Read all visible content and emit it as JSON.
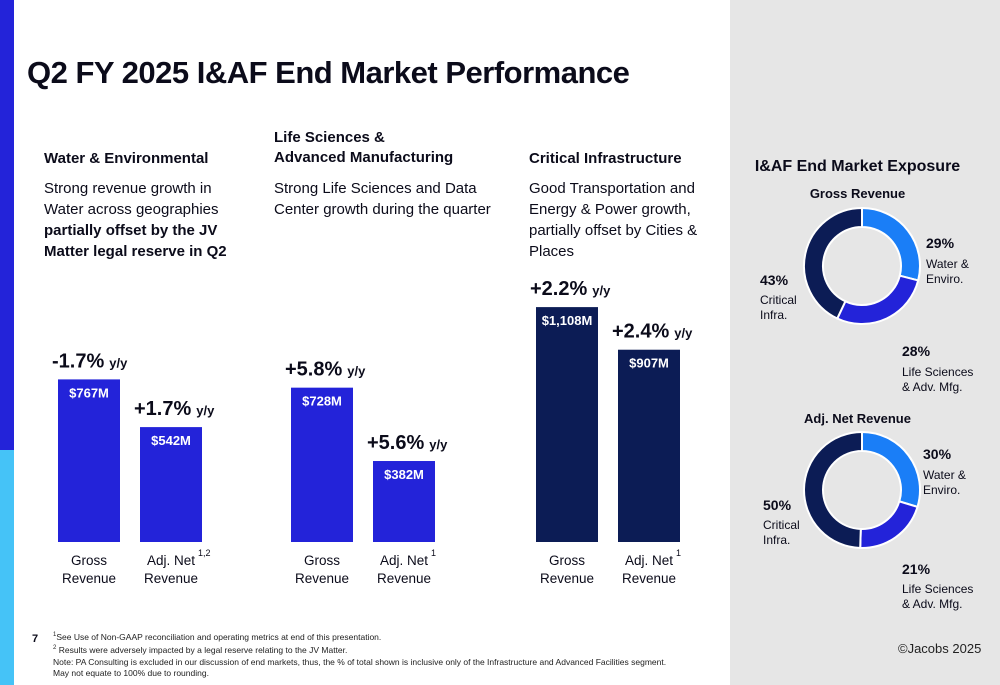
{
  "title": "Q2 FY 2025 I&AF End Market Performance",
  "colors": {
    "water": "#2323d9",
    "life": "#2323d9",
    "critical": "#0c1c55",
    "donut_light": "#1a7ef7",
    "donut_mid": "#2323d9",
    "donut_dark": "#0c1c55",
    "accent_light": "#45c3f7"
  },
  "columns": [
    {
      "heading_lines": [
        "Water & Environmental"
      ],
      "desc_plain": "Strong revenue growth in Water across geographies",
      "desc_bold": "partially offset by the JV Matter legal reserve in Q2"
    },
    {
      "heading_lines": [
        "Life Sciences &",
        "Advanced Manufacturing"
      ],
      "desc_plain": "Strong Life Sciences and Data Center growth during the quarter",
      "desc_bold": ""
    },
    {
      "heading_lines": [
        "Critical Infrastructure"
      ],
      "desc_plain": "Good Transportation and Energy & Power growth, partially offset by Cities & Places",
      "desc_bold": ""
    }
  ],
  "chart_data": [
    {
      "type": "bar",
      "segment": "Water & Environmental",
      "categories": [
        "Gross Revenue",
        "Adj. Net Revenue"
      ],
      "category_lines": [
        [
          "Gross",
          "Revenue"
        ],
        [
          "Adj. Net",
          "Revenue"
        ]
      ],
      "superscripts": [
        "",
        "1,2"
      ],
      "values": [
        767,
        542
      ],
      "value_labels": [
        "$767M",
        "$542M"
      ],
      "growth_labels": [
        "-1.7%",
        "+1.7%"
      ],
      "growth_unit": "y/y",
      "unit": "$M"
    },
    {
      "type": "bar",
      "segment": "Life Sciences & Advanced Manufacturing",
      "categories": [
        "Gross Revenue",
        "Adj. Net Revenue"
      ],
      "category_lines": [
        [
          "Gross",
          "Revenue"
        ],
        [
          "Adj. Net",
          "Revenue"
        ]
      ],
      "superscripts": [
        "",
        "1"
      ],
      "values": [
        728,
        382
      ],
      "value_labels": [
        "$728M",
        "$382M"
      ],
      "growth_labels": [
        "+5.8%",
        "+5.6%"
      ],
      "growth_unit": "y/y",
      "unit": "$M"
    },
    {
      "type": "bar",
      "segment": "Critical Infrastructure",
      "categories": [
        "Gross Revenue",
        "Adj. Net Revenue"
      ],
      "category_lines": [
        [
          "Gross",
          "Revenue"
        ],
        [
          "Adj. Net",
          "Revenue"
        ]
      ],
      "superscripts": [
        "",
        "1"
      ],
      "values": [
        1108,
        907
      ],
      "value_labels": [
        "$1,108M",
        "$907M"
      ],
      "growth_labels": [
        "+2.2%",
        "+2.4%"
      ],
      "growth_unit": "y/y",
      "unit": "$M"
    },
    {
      "type": "pie",
      "variant": "donut",
      "title": "Gross Revenue",
      "slices": [
        {
          "pct": "29%",
          "value": 29,
          "label_lines": [
            "Water &",
            "Enviro."
          ],
          "color": "#1a7ef7"
        },
        {
          "pct": "28%",
          "value": 28,
          "label_lines": [
            "Life Sciences",
            "& Adv. Mfg."
          ],
          "color": "#2323d9"
        },
        {
          "pct": "43%",
          "value": 43,
          "label_lines": [
            "Critical",
            "Infra."
          ],
          "color": "#0c1c55"
        }
      ]
    },
    {
      "type": "pie",
      "variant": "donut",
      "title": "Adj. Net Revenue",
      "slices": [
        {
          "pct": "30%",
          "value": 30,
          "label_lines": [
            "Water &",
            "Enviro."
          ],
          "color": "#1a7ef7"
        },
        {
          "pct": "21%",
          "value": 21,
          "label_lines": [
            "Life Sciences",
            "& Adv. Mfg."
          ],
          "color": "#2323d9"
        },
        {
          "pct": "50%",
          "value": 50,
          "label_lines": [
            "Critical",
            "Infra."
          ],
          "color": "#0c1c55"
        }
      ]
    }
  ],
  "exposure": {
    "title": "I&AF End Market Exposure"
  },
  "footnotes": {
    "n1_mark": "1",
    "n1": "See Use of Non-GAAP reconciliation and operating metrics at end of this presentation.",
    "n2_mark": "2",
    "n2": "Results were adversely impacted by a legal reserve relating to the JV Matter.",
    "note": "Note: PA Consulting is excluded in our discussion of end markets, thus, the % of total shown is inclusive only of the Infrastructure and Advanced Facilities segment.",
    "rounding": "May not equate to 100% due to rounding."
  },
  "page_number": "7",
  "copyright": "©Jacobs 2025"
}
